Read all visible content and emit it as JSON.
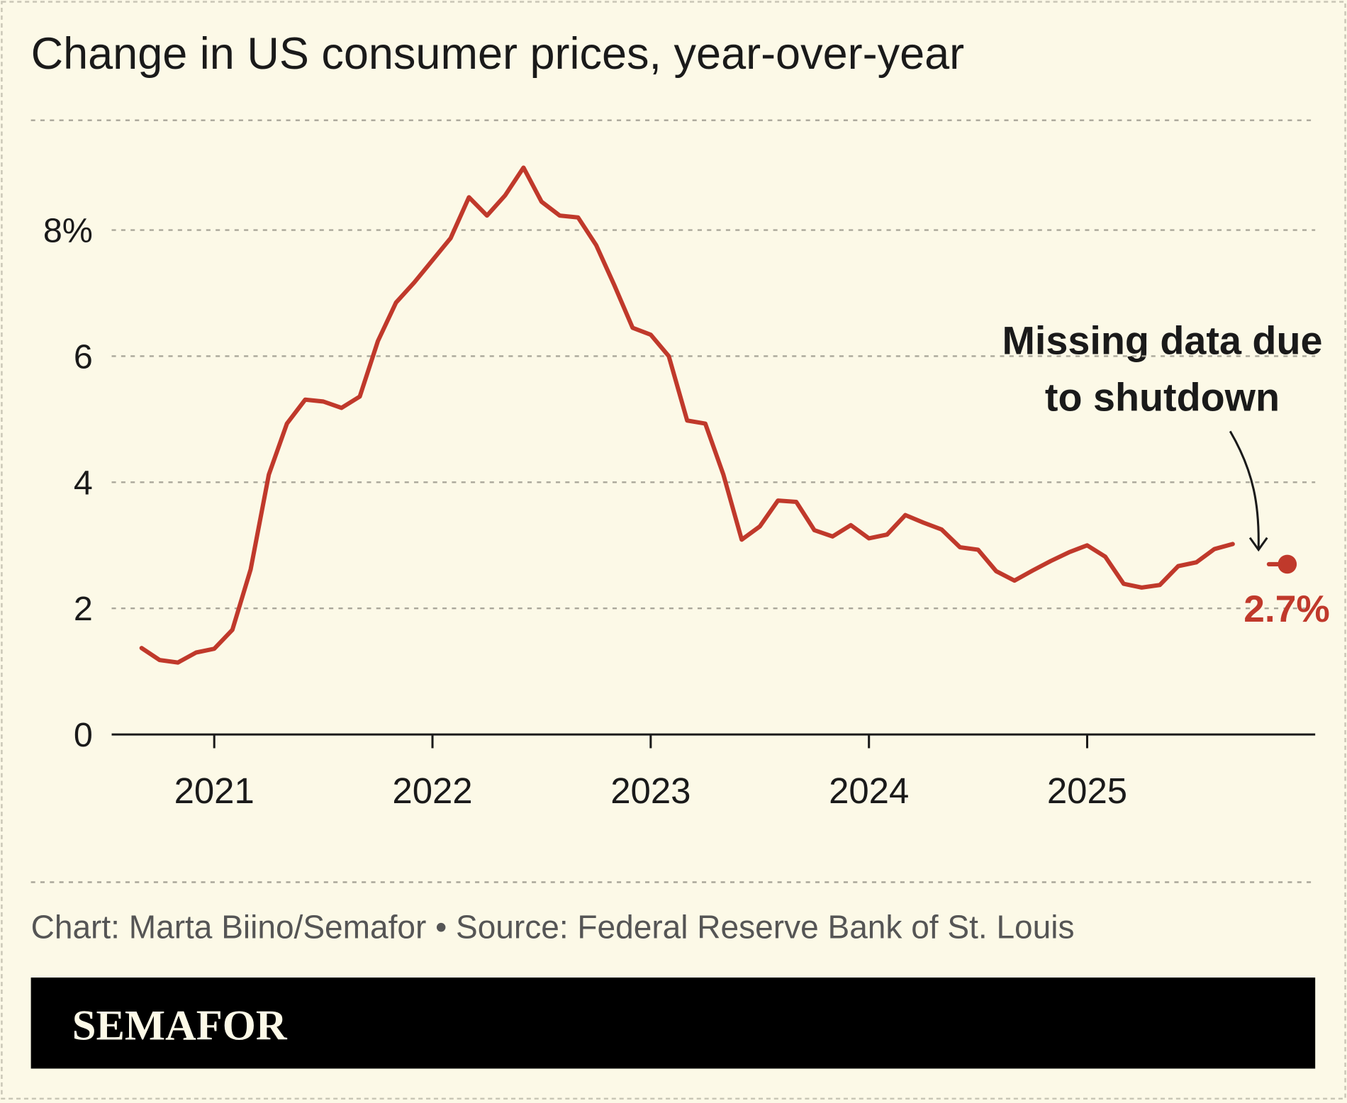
{
  "chart_data": {
    "type": "line",
    "title": "Change in US consumer prices, year-over-year",
    "x": [
      2020.667,
      2020.75,
      2020.833,
      2020.917,
      2021.0,
      2021.083,
      2021.167,
      2021.25,
      2021.333,
      2021.417,
      2021.5,
      2021.583,
      2021.667,
      2021.75,
      2021.833,
      2021.917,
      2022.0,
      2022.083,
      2022.167,
      2022.25,
      2022.333,
      2022.417,
      2022.5,
      2022.583,
      2022.667,
      2022.75,
      2022.833,
      2022.917,
      2023.0,
      2023.083,
      2023.167,
      2023.25,
      2023.333,
      2023.417,
      2023.5,
      2023.583,
      2023.667,
      2023.75,
      2023.833,
      2023.917,
      2024.0,
      2024.083,
      2024.167,
      2024.25,
      2024.333,
      2024.417,
      2024.5,
      2024.583,
      2024.667,
      2024.75,
      2024.833,
      2024.917,
      2025.0,
      2025.083,
      2025.167,
      2025.25,
      2025.333,
      2025.417,
      2025.5,
      2025.583,
      2025.667,
      2025.75,
      2025.833,
      2025.917
    ],
    "values": [
      1.37,
      1.18,
      1.14,
      1.3,
      1.36,
      1.66,
      2.62,
      4.12,
      4.93,
      5.31,
      5.28,
      5.18,
      5.36,
      6.24,
      6.85,
      7.17,
      7.52,
      7.87,
      8.52,
      8.23,
      8.55,
      8.99,
      8.45,
      8.23,
      8.2,
      7.76,
      7.13,
      6.45,
      6.34,
      6.0,
      4.98,
      4.93,
      4.12,
      3.09,
      3.3,
      3.71,
      3.69,
      3.24,
      3.14,
      3.32,
      3.11,
      3.17,
      3.48,
      3.36,
      3.25,
      2.97,
      2.93,
      2.59,
      2.44,
      2.6,
      2.75,
      2.89,
      3.0,
      2.82,
      2.39,
      2.33,
      2.37,
      2.67,
      2.73,
      2.94,
      3.02,
      null,
      2.7,
      2.7
    ],
    "value_labels": [
      null,
      null,
      null,
      null,
      null,
      null,
      null,
      null,
      null,
      null,
      null,
      null,
      null,
      null,
      null,
      null,
      null,
      null,
      null,
      null,
      null,
      null,
      null,
      null,
      null,
      null,
      null,
      null,
      null,
      null,
      null,
      null,
      null,
      null,
      null,
      null,
      null,
      null,
      null,
      null,
      null,
      null,
      null,
      null,
      null,
      null,
      null,
      null,
      null,
      null,
      null,
      null,
      null,
      null,
      null,
      null,
      null,
      null,
      null,
      null,
      null,
      null,
      null,
      "2.7%"
    ],
    "color": "#c0392b",
    "xlim": [
      2020.53,
      2026.045
    ],
    "xticks": [
      2021,
      2022,
      2023,
      2024,
      2025
    ],
    "ylim": [
      0,
      9.5
    ],
    "yticks": [
      0,
      2,
      4,
      6,
      {
        "value": 8,
        "label": "8%"
      }
    ],
    "grid": true,
    "annotation": [
      "Missing data due",
      "to shutdown"
    ],
    "source": "Chart: Marta Biino/Semafor • Source: Federal Reserve Bank of St. Louis",
    "brand": "SEMAFOR"
  }
}
